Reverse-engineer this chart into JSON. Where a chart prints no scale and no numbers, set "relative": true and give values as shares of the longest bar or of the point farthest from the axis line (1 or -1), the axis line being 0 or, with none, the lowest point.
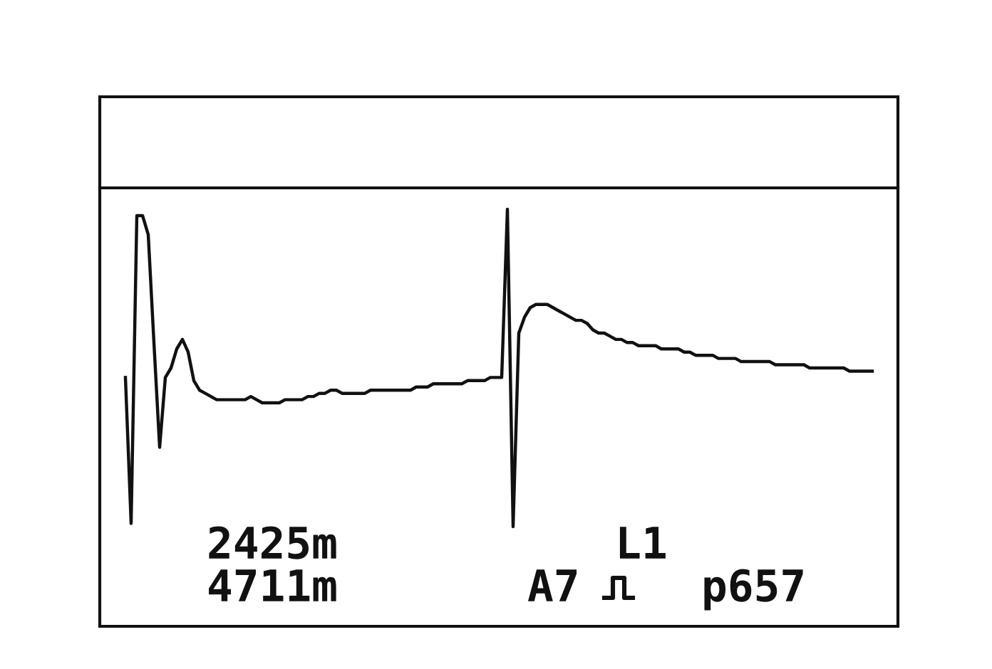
{
  "chart_data": {
    "type": "line",
    "relative": true,
    "color": "#111111",
    "tick_labels": false,
    "categories": [
      null,
      null,
      null,
      null,
      null,
      null,
      null,
      null,
      null,
      null,
      null,
      null,
      null,
      null,
      null,
      null,
      null,
      null,
      null,
      null,
      null,
      null,
      null,
      null,
      null,
      null,
      null,
      null,
      null,
      null,
      null,
      null,
      null,
      null,
      null,
      null,
      null,
      null,
      null,
      null,
      null,
      null,
      null,
      null,
      null,
      null,
      null,
      null,
      null,
      null,
      null,
      null,
      null,
      null,
      null,
      null,
      null,
      null,
      null,
      null,
      null,
      null,
      null,
      null,
      null,
      null,
      null,
      null,
      null,
      null,
      null,
      null,
      null,
      null,
      null,
      null,
      null,
      null,
      null,
      null,
      null,
      null,
      null,
      null,
      null,
      null,
      null,
      null,
      null,
      null,
      null,
      null,
      null,
      null,
      null,
      null,
      null,
      null,
      null,
      null,
      null,
      null,
      null,
      null,
      null,
      null,
      null,
      null,
      null,
      null,
      null,
      null,
      null,
      null,
      null,
      null,
      null,
      null,
      null,
      null,
      null,
      null,
      null,
      null,
      null,
      null,
      null,
      null,
      null,
      null,
      null,
      null
    ],
    "values": [
      0.47,
      0.01,
      0.98,
      0.98,
      0.92,
      0.58,
      0.25,
      0.47,
      0.5,
      0.56,
      0.59,
      0.55,
      0.46,
      0.43,
      0.42,
      0.41,
      0.4,
      0.4,
      0.4,
      0.4,
      0.4,
      0.4,
      0.41,
      0.4,
      0.39,
      0.39,
      0.39,
      0.39,
      0.4,
      0.4,
      0.4,
      0.4,
      0.41,
      0.41,
      0.42,
      0.42,
      0.43,
      0.43,
      0.42,
      0.42,
      0.42,
      0.42,
      0.42,
      0.43,
      0.43,
      0.43,
      0.43,
      0.43,
      0.43,
      0.43,
      0.43,
      0.44,
      0.44,
      0.44,
      0.45,
      0.45,
      0.45,
      0.45,
      0.45,
      0.45,
      0.46,
      0.46,
      0.46,
      0.46,
      0.47,
      0.47,
      0.47,
      1,
      0,
      0.61,
      0.66,
      0.69,
      0.7,
      0.7,
      0.7,
      0.69,
      0.68,
      0.67,
      0.66,
      0.65,
      0.65,
      0.64,
      0.62,
      0.61,
      0.61,
      0.6,
      0.59,
      0.59,
      0.58,
      0.58,
      0.57,
      0.57,
      0.57,
      0.57,
      0.56,
      0.56,
      0.56,
      0.56,
      0.55,
      0.55,
      0.54,
      0.54,
      0.54,
      0.54,
      0.53,
      0.53,
      0.53,
      0.53,
      0.52,
      0.52,
      0.52,
      0.52,
      0.52,
      0.52,
      0.51,
      0.51,
      0.51,
      0.51,
      0.51,
      0.51,
      0.5,
      0.5,
      0.5,
      0.5,
      0.5,
      0.5,
      0.5,
      0.49,
      0.49,
      0.49,
      0.49,
      0.49
    ],
    "annotations": [
      "2425m",
      "4711m",
      "L1",
      "A7",
      "p657"
    ]
  }
}
